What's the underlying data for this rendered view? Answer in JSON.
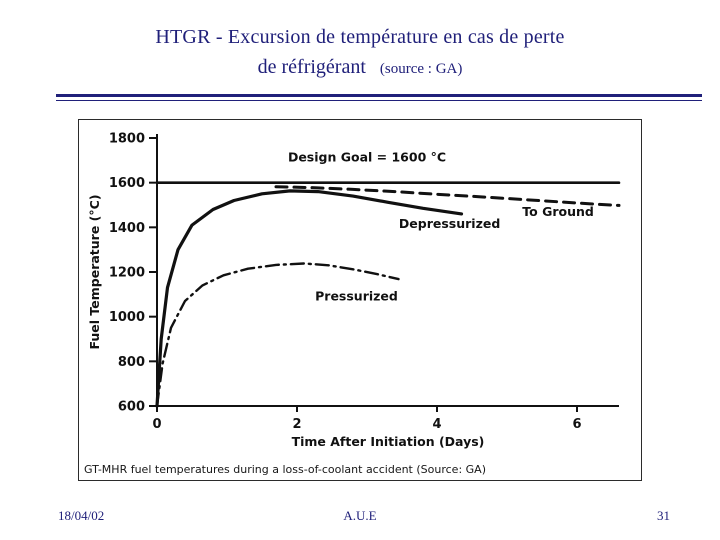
{
  "slide": {
    "title_line1": "HTGR -  Excursion de température en cas de perte",
    "title_line2": "de réfrigérant",
    "title_source": "(source : GA)",
    "accent_color": "#20207a",
    "footer": {
      "date": "18/04/02",
      "author": "A.U.E",
      "page": "31"
    }
  },
  "chart_data": {
    "type": "line",
    "title": "",
    "xlabel": "Time After Initiation (Days)",
    "ylabel": "Fuel Temperature (°C)",
    "caption": "GT-MHR fuel temperatures during a loss-of-coolant accident (Source: GA)",
    "xlim": [
      0,
      6.6
    ],
    "ylim": [
      600,
      1800
    ],
    "xticks": [
      0,
      2,
      4,
      6
    ],
    "yticks": [
      600,
      800,
      1000,
      1200,
      1400,
      1600,
      1800
    ],
    "grid": false,
    "legend_position": "none",
    "line_color": "#111111",
    "series": [
      {
        "name": "Design Goal",
        "style": "solid",
        "width": 2.6,
        "x": [
          0,
          6.6
        ],
        "y": [
          1600,
          1600
        ]
      },
      {
        "name": "Depressurized",
        "style": "solid",
        "width": 3.2,
        "x": [
          0,
          0.06,
          0.15,
          0.3,
          0.5,
          0.8,
          1.1,
          1.5,
          1.9,
          2.3,
          2.8,
          3.3,
          3.8,
          4.35
        ],
        "y": [
          600,
          900,
          1130,
          1300,
          1410,
          1480,
          1520,
          1550,
          1563,
          1560,
          1540,
          1512,
          1485,
          1460
        ]
      },
      {
        "name": "To Ground",
        "style": "dashed",
        "width": 3,
        "x": [
          1.7,
          2.2,
          2.8,
          3.4,
          4.0,
          4.6,
          5.2,
          5.8,
          6.3,
          6.6
        ],
        "y": [
          1582,
          1578,
          1570,
          1560,
          1548,
          1537,
          1525,
          1513,
          1503,
          1498
        ]
      },
      {
        "name": "Pressurized",
        "style": "dashdot",
        "width": 2.4,
        "x": [
          0,
          0.08,
          0.2,
          0.4,
          0.65,
          0.95,
          1.3,
          1.7,
          2.1,
          2.45,
          2.8,
          3.15,
          3.45
        ],
        "y": [
          600,
          790,
          950,
          1070,
          1140,
          1185,
          1215,
          1232,
          1238,
          1230,
          1212,
          1190,
          1168
        ]
      }
    ],
    "annotations": [
      {
        "text": "Design Goal = 1600 °C",
        "x": 3.0,
        "y": 1695
      },
      {
        "text": "Depressurized",
        "x": 4.18,
        "y": 1397
      },
      {
        "text": "To Ground",
        "x": 5.73,
        "y": 1450
      },
      {
        "text": "Pressurized",
        "x": 2.85,
        "y": 1072
      }
    ]
  }
}
